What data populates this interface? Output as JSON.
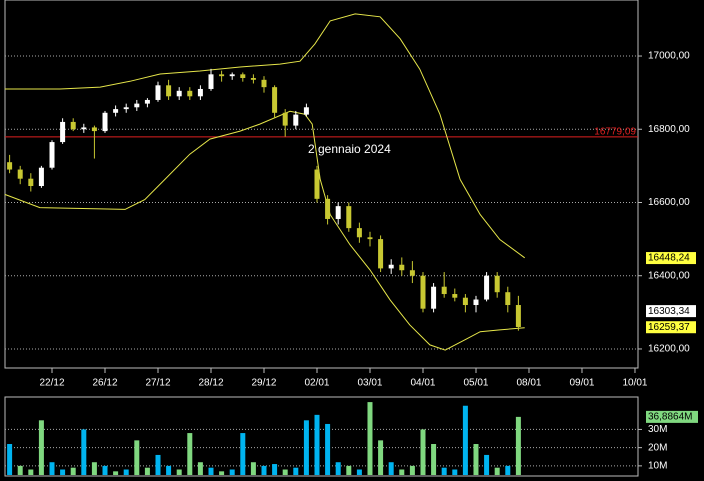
{
  "chart_data": [
    {
      "type": "candlestick",
      "annotation": "2 gennaio 2024",
      "x": [
        -8,
        -6,
        -4,
        -2,
        0,
        2,
        4,
        6,
        8,
        10,
        12,
        14,
        16,
        18,
        20,
        22,
        24,
        26,
        28,
        30,
        32,
        34,
        36,
        38,
        40,
        42,
        44,
        46,
        48,
        50,
        52,
        54,
        56,
        58,
        60,
        62,
        64,
        66,
        68,
        70,
        72,
        74,
        76,
        78,
        80,
        82,
        84,
        86,
        88
      ],
      "open": [
        16710,
        16690,
        16665,
        16645,
        16695,
        16765,
        16820,
        16800,
        16805,
        16795,
        16845,
        16855,
        16860,
        16870,
        16880,
        16920,
        16890,
        16905,
        16890,
        16910,
        16950,
        16945,
        16950,
        16940,
        16935,
        16915,
        16845,
        16810,
        16840,
        16690,
        16610,
        16555,
        16590,
        16530,
        16505,
        16500,
        16420,
        16430,
        16415,
        16400,
        16310,
        16370,
        16350,
        16340,
        16320,
        16335,
        16400,
        16355,
        16320
      ],
      "high": [
        16730,
        16700,
        16680,
        16700,
        16770,
        16830,
        16830,
        16815,
        16810,
        16850,
        16865,
        16870,
        16880,
        16885,
        16930,
        16935,
        16915,
        16915,
        16920,
        16965,
        16960,
        16955,
        16955,
        16950,
        16945,
        16920,
        16855,
        16850,
        16870,
        16700,
        16620,
        16600,
        16600,
        16545,
        16520,
        16510,
        16445,
        16450,
        16440,
        16410,
        16380,
        16410,
        16365,
        16350,
        16345,
        16410,
        16410,
        16370,
        16345
      ],
      "low": [
        16680,
        16650,
        16630,
        16640,
        16690,
        16760,
        16795,
        16790,
        16720,
        16790,
        16835,
        16845,
        16850,
        16860,
        16875,
        16880,
        16880,
        16880,
        16880,
        16905,
        16930,
        16935,
        16930,
        16925,
        16900,
        16830,
        16780,
        16800,
        16835,
        16600,
        16540,
        16540,
        16520,
        16490,
        16480,
        16410,
        16405,
        16400,
        16380,
        16300,
        16300,
        16340,
        16330,
        16300,
        16300,
        16330,
        16340,
        16300,
        16250
      ],
      "close": [
        16690,
        16665,
        16645,
        16695,
        16765,
        16820,
        16800,
        16805,
        16795,
        16845,
        16855,
        16860,
        16870,
        16880,
        16920,
        16890,
        16905,
        16890,
        16910,
        16950,
        16945,
        16950,
        16940,
        16935,
        16915,
        16845,
        16810,
        16840,
        16860,
        16610,
        16555,
        16590,
        16530,
        16505,
        16500,
        16420,
        16430,
        16415,
        16400,
        16310,
        16370,
        16350,
        16340,
        16320,
        16335,
        16400,
        16355,
        16320,
        16260
      ],
      "up_color": "#ffffff",
      "down_color": "#c8c832",
      "bands": [
        {
          "color": "#e6e64a",
          "x": [
            -8.9,
            1.5,
            9.1,
            14.7,
            20.4,
            27.9,
            35.5,
            43,
            46.8,
            49.6,
            52.5,
            57.2,
            61.9,
            65.7,
            69.4,
            73.2,
            77,
            80.8,
            84.5,
            89.2
          ],
          "values": [
            16910,
            16910,
            16915,
            16931,
            16951,
            16959,
            16970,
            16978,
            16986,
            17033,
            17096,
            17115,
            17107,
            17047,
            16964,
            16841,
            16663,
            16567,
            16499,
            16449
          ]
        },
        {
          "color": "#e6e64a",
          "x": [
            -8.9,
            -2.3,
            13.8,
            17.5,
            21.3,
            26,
            29.8,
            35.5,
            39.2,
            44.9,
            47.7,
            49.1,
            50.6,
            52.5,
            56.2,
            60,
            63.8,
            67.5,
            71.3,
            74.2,
            77.9,
            80.8,
            84.5,
            89.2
          ],
          "values": [
            16622,
            16586,
            16581,
            16608,
            16663,
            16732,
            16773,
            16795,
            16814,
            16849,
            16841,
            16814,
            16663,
            16567,
            16485,
            16416,
            16334,
            16266,
            16211,
            16197,
            16225,
            16247,
            16252,
            16258
          ]
        }
      ],
      "hline": {
        "value": 16779.09,
        "label": "16779,09",
        "color": "#e02020"
      },
      "price_tags": [
        {
          "value": 16448.24,
          "label": "16448,24",
          "color": "#ffff40"
        },
        {
          "value": 16303.34,
          "label": "16303,34",
          "color": "#ffffff"
        },
        {
          "value": 16259.37,
          "label": "16259,37",
          "color": "#ffff40"
        }
      ],
      "xlim": [
        -8.87,
        110.57
      ],
      "xticks": [
        {
          "value": 0,
          "label": "22/12"
        },
        {
          "value": 10,
          "label": "26/12"
        },
        {
          "value": 20,
          "label": "27/12"
        },
        {
          "value": 30,
          "label": "28/12"
        },
        {
          "value": 40,
          "label": "29/12"
        },
        {
          "value": 50,
          "label": "02/01"
        },
        {
          "value": 60,
          "label": "03/01"
        },
        {
          "value": 70,
          "label": "04/01"
        },
        {
          "value": 80,
          "label": "05/01"
        },
        {
          "value": 90,
          "label": "08/01"
        },
        {
          "value": 100,
          "label": "09/01"
        },
        {
          "value": 110,
          "label": "10/01"
        }
      ],
      "ylim": [
        16148,
        17153
      ],
      "yticks": [
        {
          "value": 16200,
          "label": "16200,00"
        },
        {
          "value": 16400,
          "label": "16400,00"
        },
        {
          "value": 16600,
          "label": "16600,00"
        },
        {
          "value": 16800,
          "label": "16800,00"
        },
        {
          "value": 17000,
          "label": "17000,00"
        }
      ],
      "grid": true
    },
    {
      "type": "bar",
      "x": [
        -8,
        -6,
        -4,
        -2,
        0,
        2,
        4,
        6,
        8,
        10,
        12,
        14,
        16,
        18,
        20,
        22,
        24,
        26,
        28,
        30,
        32,
        34,
        36,
        38,
        40,
        42,
        44,
        46,
        48,
        50,
        52,
        54,
        56,
        58,
        60,
        62,
        64,
        66,
        68,
        70,
        72,
        74,
        76,
        78,
        80,
        82,
        84,
        86,
        88
      ],
      "values": [
        22,
        10,
        8,
        35,
        12,
        8,
        9,
        30,
        12,
        10,
        7,
        8,
        24,
        9,
        16,
        10,
        8,
        28,
        12,
        9,
        7,
        8,
        28,
        12,
        10,
        11,
        8,
        9,
        35,
        38,
        33,
        12,
        10,
        8,
        45,
        24,
        12,
        8,
        10,
        30,
        22,
        9,
        8,
        43,
        22,
        16,
        9,
        10,
        36.8864
      ],
      "colors": [
        "#00b4f0",
        "#80d880",
        "#80d880",
        "#80d880",
        "#00b4f0",
        "#00b4f0",
        "#80d880",
        "#00b4f0",
        "#80d880",
        "#00b4f0",
        "#80d880",
        "#00b4f0",
        "#80d880",
        "#80d880",
        "#00b4f0",
        "#00b4f0",
        "#80d880",
        "#80d880",
        "#80d880",
        "#00b4f0",
        "#80d880",
        "#00b4f0",
        "#00b4f0",
        "#80d880",
        "#00b4f0",
        "#00b4f0",
        "#80d880",
        "#00b4f0",
        "#00b4f0",
        "#00b4f0",
        "#00b4f0",
        "#00b4f0",
        "#80d880",
        "#00b4f0",
        "#80d880",
        "#80d880",
        "#00b4f0",
        "#80d880",
        "#80d880",
        "#80d880",
        "#80d880",
        "#00b4f0",
        "#00b4f0",
        "#00b4f0",
        "#80d880",
        "#00b4f0",
        "#80d880",
        "#00b4f0",
        "#80d880"
      ],
      "value_tag": {
        "value": 36.8864,
        "label": "36,8864M",
        "color": "#80d880"
      },
      "xlim": [
        -8.87,
        110.57
      ],
      "ylim": [
        4.44,
        47.8
      ],
      "yticks": [
        {
          "value": 10,
          "label": "10M"
        },
        {
          "value": 20,
          "label": "20M"
        },
        {
          "value": 30,
          "label": "30M"
        }
      ],
      "grid": true
    }
  ]
}
